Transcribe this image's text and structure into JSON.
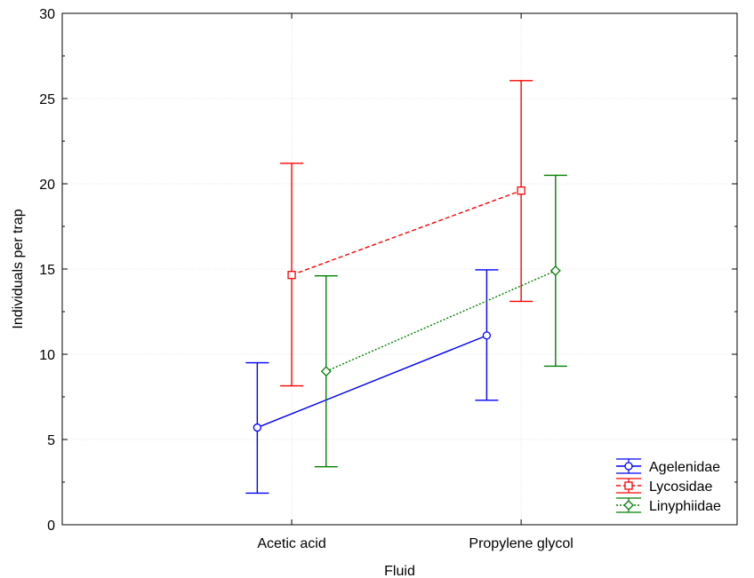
{
  "chart_data": {
    "type": "line",
    "xlabel": "Fluid",
    "ylabel": "Individuals per trap",
    "categories": [
      "Acetic acid",
      "Propylene glycol"
    ],
    "ylim": [
      0,
      30
    ],
    "yticks": [
      0,
      5,
      10,
      15,
      20,
      25,
      30
    ],
    "grid": true,
    "legend_position": "bottom-right",
    "series": [
      {
        "name": "Agelenidae",
        "color": "#0000ff",
        "line_style": "solid",
        "marker": "circle",
        "category_offset": -0.15,
        "values": [
          5.7,
          11.1
        ],
        "lower": [
          1.85,
          7.3
        ],
        "upper": [
          9.5,
          14.95
        ]
      },
      {
        "name": "Lycosidae",
        "color": "#ff0000",
        "line_style": "dashed",
        "marker": "square",
        "category_offset": 0,
        "values": [
          14.65,
          19.6
        ],
        "lower": [
          8.15,
          13.1
        ],
        "upper": [
          21.2,
          26.05
        ]
      },
      {
        "name": "Linyphiidae",
        "color": "#008000",
        "line_style": "dotted",
        "marker": "diamond",
        "category_offset": 0.15,
        "values": [
          9.0,
          14.9
        ],
        "lower": [
          3.4,
          9.3
        ],
        "upper": [
          14.6,
          20.5
        ]
      }
    ]
  }
}
